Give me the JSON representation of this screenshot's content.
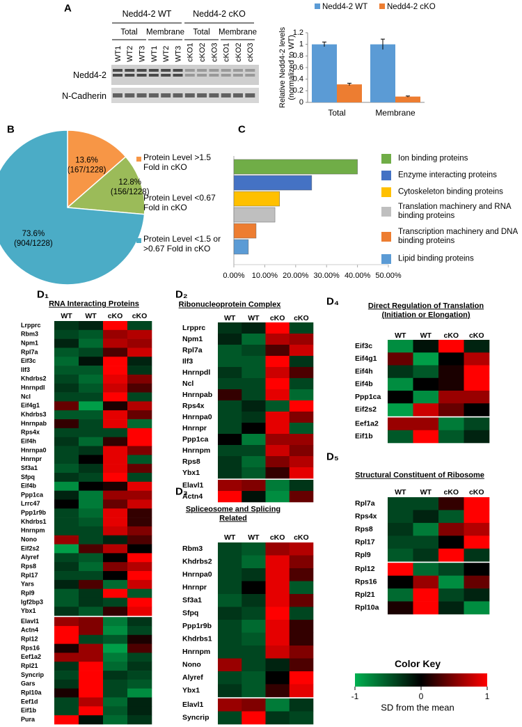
{
  "panels": [
    "A",
    "B",
    "C",
    "D₁",
    "D₂",
    "D₃",
    "D₄",
    "D₅"
  ],
  "blot": {
    "groups": [
      "Nedd4-2 WT",
      "Nedd4-2 cKO"
    ],
    "fractions": [
      "Total",
      "Membrane",
      "Total",
      "Membrane"
    ],
    "lanes": [
      "WT1",
      "WT2",
      "WT3",
      "WT1",
      "WT2",
      "WT3",
      "cKO1",
      "cKO2",
      "cKO3",
      "cKO1",
      "cKO2",
      "cKO3"
    ],
    "rows": [
      "Nedd4-2",
      "N-Cadherin"
    ]
  },
  "chart_data": [
    {
      "type": "bar",
      "ylabel": [
        "Relative Nedd4-2 levels",
        "(normalized to WT)"
      ],
      "categories": [
        "Total",
        "Membrane"
      ],
      "series": [
        {
          "name": "Nedd4-2 WT",
          "color": "#5b9bd5",
          "values": [
            1,
            1
          ],
          "errors": [
            0.04,
            0.09
          ]
        },
        {
          "name": "Nedd4-2 cKO",
          "color": "#ed7d31",
          "values": [
            0.31,
            0.1
          ],
          "errors": [
            0.02,
            0.01
          ]
        }
      ],
      "ylim": [
        0,
        1.2
      ],
      "yticks": [
        0,
        0.2,
        0.4,
        0.6,
        0.8,
        1,
        1.2
      ],
      "legend": "top"
    },
    {
      "type": "pie",
      "categories": [
        "Protein Level >1.5 Fold in cKO",
        "Protein Level <0.67 Fold in cKO",
        "Protein Level <1.5 or >0.67 Fold in cKO"
      ],
      "values": [
        13.6,
        12.8,
        73.6
      ],
      "value_labels": [
        "13.6%",
        "12.8%",
        "73.6%"
      ],
      "count_labels": [
        "(167/1228)",
        "(156/1228)",
        "(904/1228)"
      ],
      "colors": [
        "#f79646",
        "#9bbb59",
        "#4bacc6"
      ],
      "legend": "right"
    },
    {
      "type": "hbar",
      "categories": [
        "Ion binding proteins",
        "Enzyme interacting proteins",
        "Cytoskeleton binding proteins",
        "Translation machinery and RNA binding proteins",
        "Transcription machinery and DNA binding proteins",
        "Lipid binding proteins"
      ],
      "values": [
        40,
        25.2,
        14.8,
        13.3,
        7.2,
        4.7
      ],
      "colors": [
        "#70ad47",
        "#4472c4",
        "#ffc000",
        "#bfbfbf",
        "#ed7d31",
        "#5b9bd5"
      ],
      "xlim": [
        0,
        50
      ],
      "xticks": [
        {
          "value": 0,
          "label": "0.00%"
        },
        {
          "value": 10,
          "label": "10.00%"
        },
        {
          "value": 20,
          "label": "20.00%"
        },
        {
          "value": 30,
          "label": "30.00%"
        },
        {
          "value": 40,
          "label": "40.00%"
        },
        {
          "value": 50,
          "label": "50.00%"
        }
      ],
      "legend": "right"
    },
    {
      "type": "heatmap",
      "title": "RNA Interacting Proteins",
      "columns": [
        "WT",
        "WT",
        "cKO",
        "cKO"
      ],
      "groups": [
        {
          "rows": [
            "Lrpprc",
            "Rbm3",
            "Npm1",
            "Rpl7a",
            "Eif3c",
            "Ilf3",
            "Khdrbs2",
            "Hnrnpdl",
            "Ncl",
            "Eif4g1",
            "Khdrbs3",
            "Hnrnpab",
            "Rps4x",
            "Eif4h",
            "Hnrnpa0",
            "Hnrnpr",
            "Sf3a1",
            "Sfpq",
            "Eif4b",
            "Ppp1ca",
            "Lrrc47",
            "Ppp1r9b",
            "Khdrbs1",
            "Hnrnpm",
            "Nono",
            "Eif2s2",
            "Alyref",
            "Rps8",
            "Rpl17",
            "Yars",
            "Rpl9",
            "Igf2bp3",
            "Ybx1"
          ],
          "values": [
            [
              -0.3,
              -0.2,
              1,
              -0.4
            ],
            [
              -0.4,
              -0.5,
              0.6,
              0.7
            ],
            [
              -0.2,
              -0.6,
              0.7,
              0.6
            ],
            [
              -0.5,
              -0.4,
              0.3,
              0.8
            ],
            [
              -0.6,
              -0.1,
              1,
              -0.2
            ],
            [
              -0.5,
              -0.5,
              1,
              -0.3
            ],
            [
              -0.4,
              -0.6,
              0.9,
              0.5
            ],
            [
              -0.3,
              -0.5,
              0.8,
              0.3
            ],
            [
              -0.4,
              -0.4,
              1,
              -0.4
            ],
            [
              0.4,
              -0.9,
              0.1,
              0.7
            ],
            [
              -0.5,
              -0.5,
              0.9,
              0.4
            ],
            [
              0.2,
              -0.4,
              0.9,
              -0.6
            ],
            [
              -0.4,
              -0.4,
              -0.4,
              1
            ],
            [
              -0.3,
              -0.6,
              0.2,
              1
            ],
            [
              -0.4,
              -0.3,
              0.9,
              0.5
            ],
            [
              -0.4,
              0,
              0.9,
              -0.5
            ],
            [
              -0.5,
              -0.3,
              0.9,
              0.4
            ],
            [
              -0.3,
              -0.4,
              1,
              -0.4
            ],
            [
              -0.8,
              0,
              0.1,
              0.9
            ],
            [
              -0.2,
              -0.7,
              0.6,
              0.6
            ],
            [
              0,
              -0.7,
              0.4,
              0.8
            ],
            [
              -0.4,
              -0.6,
              0.9,
              0.2
            ],
            [
              -0.4,
              -0.5,
              0.9,
              0.2
            ],
            [
              -0.4,
              -0.4,
              0.8,
              0.5
            ],
            [
              0.6,
              -0.4,
              -0.2,
              0.3
            ],
            [
              -0.9,
              0.3,
              0.7,
              0
            ],
            [
              -0.4,
              -0.5,
              0,
              1
            ],
            [
              -0.3,
              -0.6,
              0.5,
              0.7
            ],
            [
              -0.4,
              -0.4,
              0,
              1
            ],
            [
              -0.2,
              0.3,
              -0.6,
              0.8
            ],
            [
              -0.5,
              -0.3,
              1,
              -0.5
            ],
            [
              -0.5,
              -0.3,
              -0.4,
              1
            ],
            [
              -0.3,
              -0.5,
              0.2,
              0.9
            ]
          ]
        },
        {
          "rows": [
            "Elavl1",
            "Actn4",
            "Rpl12",
            "Rps16",
            "Eef1a2",
            "Rpl21",
            "Syncrip",
            "Gars",
            "Rpl10a",
            "Eef1d",
            "Eif1b",
            "Pura"
          ],
          "values": [
            [
              0.6,
              0.5,
              -0.7,
              -0.3
            ],
            [
              1,
              0.5,
              -0.8,
              -0.4
            ],
            [
              1,
              -0.4,
              -0.5,
              0.1
            ],
            [
              0.1,
              0.6,
              -0.9,
              0.3
            ],
            [
              0.6,
              0.6,
              -0.7,
              -0.4
            ],
            [
              -0.3,
              1,
              -0.6,
              -0.3
            ],
            [
              -0.4,
              1,
              -0.3,
              -0.4
            ],
            [
              -0.3,
              1,
              -0.4,
              -0.5
            ],
            [
              0.1,
              1,
              -0.4,
              -0.8
            ],
            [
              -0.4,
              0.7,
              -0.6,
              -0.2
            ],
            [
              -0.4,
              1,
              -0.5,
              -0.2
            ],
            [
              1,
              -0.1,
              -0.6,
              -0.3
            ]
          ]
        }
      ]
    },
    {
      "type": "heatmap",
      "title": "Ribonucleoprotein Complex",
      "columns": [
        "WT",
        "WT",
        "cKO",
        "cKO"
      ],
      "groups": [
        {
          "rows": [
            "Lrpprc",
            "Npm1",
            "Rpl7a",
            "Ilf3",
            "Hnrnpdl",
            "Ncl",
            "Hnrnpab",
            "Rps4x",
            "Hnrnpa0",
            "Hnrnpr",
            "Ppp1ca",
            "Hnrnpm",
            "Rps8",
            "Ybx1"
          ],
          "values": [
            [
              -0.3,
              -0.2,
              1,
              -0.4
            ],
            [
              -0.2,
              -0.6,
              0.7,
              0.6
            ],
            [
              -0.5,
              -0.4,
              0.3,
              0.8
            ],
            [
              -0.5,
              -0.5,
              1,
              -0.3
            ],
            [
              -0.3,
              -0.5,
              0.8,
              0.3
            ],
            [
              -0.4,
              -0.4,
              1,
              -0.4
            ],
            [
              0.2,
              -0.4,
              0.9,
              -0.6
            ],
            [
              -0.4,
              -0.2,
              -0.5,
              1
            ],
            [
              -0.4,
              -0.3,
              0.9,
              0.5
            ],
            [
              -0.4,
              0,
              0.9,
              -0.5
            ],
            [
              0,
              -0.7,
              0.6,
              0.6
            ],
            [
              -0.4,
              -0.4,
              0.8,
              0.5
            ],
            [
              -0.3,
              -0.6,
              0.5,
              0.7
            ],
            [
              -0.3,
              -0.5,
              0.2,
              0.9
            ]
          ]
        },
        {
          "rows": [
            "Elavl1",
            "Actn4"
          ],
          "values": [
            [
              0.6,
              0.5,
              -0.7,
              -0.3
            ],
            [
              1,
              -0.1,
              -0.8,
              0.4
            ]
          ]
        }
      ]
    },
    {
      "type": "heatmap",
      "title": "Spliceosome and Splicing Related",
      "columns": [
        "WT",
        "WT",
        "cKO",
        "cKO"
      ],
      "groups": [
        {
          "rows": [
            "Rbm3",
            "Khdrbs2",
            "Hnrnpa0",
            "Hnrnpr",
            "Sf3a1",
            "Sfpq",
            "Ppp1r9b",
            "Khdrbs1",
            "Hnrnpm",
            "Nono",
            "Alyref",
            "Ybx1"
          ],
          "values": [
            [
              -0.4,
              -0.5,
              0.6,
              0.7
            ],
            [
              -0.4,
              -0.6,
              0.9,
              0.5
            ],
            [
              -0.4,
              -0.3,
              0.9,
              0.3
            ],
            [
              -0.4,
              0,
              0.9,
              -0.5
            ],
            [
              -0.5,
              -0.3,
              0.9,
              0.4
            ],
            [
              -0.3,
              -0.4,
              1,
              -0.4
            ],
            [
              -0.4,
              -0.6,
              0.9,
              0.2
            ],
            [
              -0.4,
              -0.5,
              0.9,
              0.2
            ],
            [
              -0.4,
              -0.4,
              0.8,
              0.5
            ],
            [
              0.6,
              -0.4,
              -0.2,
              0.3
            ],
            [
              -0.4,
              -0.5,
              0,
              1
            ],
            [
              -0.3,
              -0.5,
              0.2,
              0.9
            ]
          ]
        },
        {
          "rows": [
            "Elavl1",
            "Syncrip"
          ],
          "values": [
            [
              0.6,
              0.5,
              -0.7,
              -0.3
            ],
            [
              -0.4,
              1,
              -0.3,
              -0.4
            ]
          ]
        }
      ]
    },
    {
      "type": "heatmap",
      "title": "Direct Regulation of Translation (Initiation or Elongation)",
      "columns": [
        "WT",
        "WT",
        "cKO",
        "cKO"
      ],
      "groups": [
        {
          "rows": [
            "Eif3c",
            "Eif4g1",
            "Eif4h",
            "Eif4b",
            "Ppp1ca",
            "Eif2s2"
          ],
          "values": [
            [
              -0.8,
              -0.1,
              1,
              -0.2
            ],
            [
              0.4,
              -0.9,
              0,
              0.7
            ],
            [
              -0.3,
              -0.5,
              0.1,
              1
            ],
            [
              -0.8,
              0,
              0.1,
              1
            ],
            [
              0,
              -0.8,
              0.6,
              0.6
            ],
            [
              -0.9,
              0.8,
              0.4,
              0
            ]
          ]
        },
        {
          "rows": [
            "Eef1a2",
            "Eif1b"
          ],
          "values": [
            [
              0.6,
              0.6,
              -0.7,
              -0.4
            ],
            [
              -0.5,
              1,
              -0.5,
              -0.2
            ]
          ]
        }
      ]
    },
    {
      "type": "heatmap",
      "title": "Structural Constituent of Ribosome",
      "columns": [
        "WT",
        "WT",
        "cKO",
        "cKO"
      ],
      "groups": [
        {
          "rows": [
            "Rpl7a",
            "Rps4x",
            "Rps8",
            "Rpl17",
            "Rpl9"
          ],
          "values": [
            [
              -0.4,
              -0.4,
              0.2,
              1
            ],
            [
              -0.4,
              -0.2,
              -0.5,
              1
            ],
            [
              -0.3,
              -0.7,
              0.5,
              0.7
            ],
            [
              -0.4,
              -0.4,
              0,
              1
            ],
            [
              -0.5,
              -0.3,
              1,
              -0.3
            ]
          ]
        },
        {
          "rows": [
            "Rpl12",
            "Rps16",
            "Rpl21",
            "Rpl10a"
          ],
          "values": [
            [
              1,
              -0.6,
              -0.4,
              0
            ],
            [
              0,
              0.6,
              -0.8,
              0.4
            ],
            [
              -0.6,
              1,
              -0.4,
              -0.2
            ],
            [
              0.1,
              1,
              -0.2,
              -0.8
            ]
          ]
        }
      ]
    }
  ],
  "color_key": {
    "title": "Color Key",
    "xlabel": "SD from the mean",
    "xlim": [
      -1,
      1
    ],
    "xticks": [
      -1,
      0,
      1
    ],
    "colors": [
      "#00b050",
      "#000000",
      "#ff0000"
    ]
  }
}
